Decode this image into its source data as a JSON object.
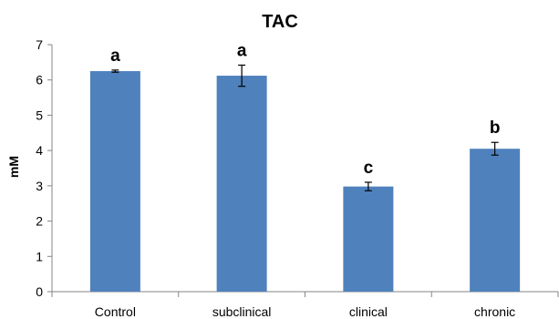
{
  "chart_data": {
    "type": "bar",
    "title": "TAC",
    "xlabel": "",
    "ylabel": "mM",
    "ylim": [
      0,
      7
    ],
    "yticks": [
      "0",
      "1",
      "2",
      "3",
      "4",
      "5",
      "6",
      "7"
    ],
    "categories": [
      "Control",
      "subclinical",
      "clinical",
      "chronic"
    ],
    "values": [
      6.25,
      6.12,
      2.98,
      4.05
    ],
    "errors": [
      0.03,
      0.3,
      0.12,
      0.18
    ],
    "annotations": [
      "a",
      "a",
      "c",
      "b"
    ],
    "grid": false,
    "legend": "none",
    "bar_color": "#4f81bd",
    "axis_color": "#868686"
  }
}
